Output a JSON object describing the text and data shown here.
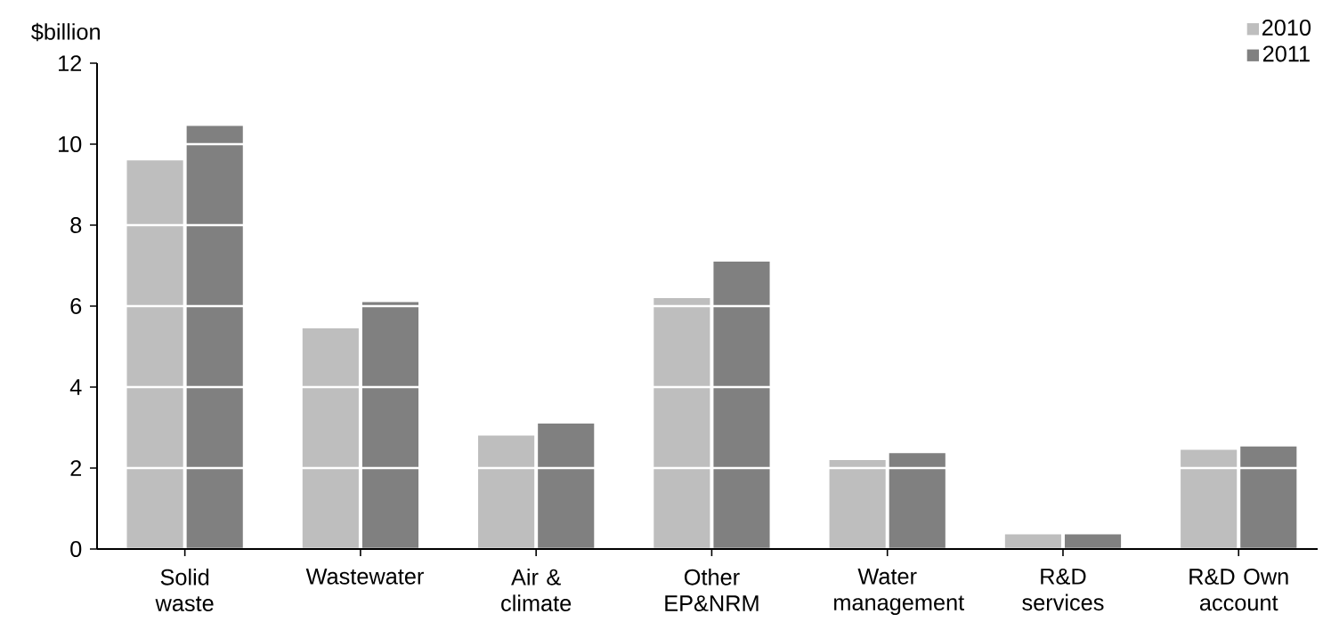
{
  "chart_data": {
    "type": "bar",
    "ylabel": "$billion",
    "categories": [
      "Solid waste",
      "Wastewater",
      "Air & climate",
      "Other EP&NRM",
      "Water management",
      "R&D services",
      "R&D Own account"
    ],
    "series": [
      {
        "name": "2010",
        "color": "#bebebe",
        "values": [
          9.6,
          5.45,
          2.8,
          6.2,
          2.2,
          0.36,
          2.45
        ]
      },
      {
        "name": "2011",
        "color": "#808080",
        "values": [
          10.45,
          6.1,
          3.1,
          7.1,
          2.37,
          0.36,
          2.53
        ]
      }
    ],
    "ylim": [
      0,
      12
    ],
    "yticks": [
      0,
      2,
      4,
      6,
      8,
      10,
      12
    ],
    "grid": "y",
    "legend": "top right"
  }
}
